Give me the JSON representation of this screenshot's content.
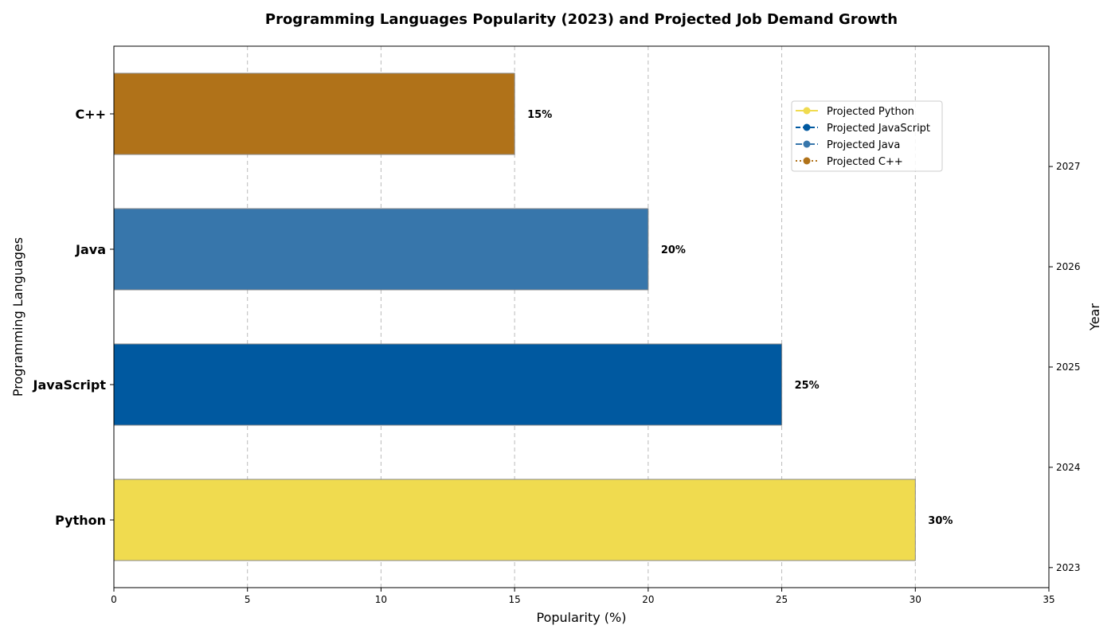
{
  "chart_data": {
    "type": "bar",
    "orientation": "horizontal",
    "title": "Programming Languages Popularity (2023) and Projected Job Demand Growth",
    "xlabel": "Popularity (%)",
    "ylabel": "Programming Languages",
    "y2label": "Year",
    "xlim": [
      0,
      35
    ],
    "xticks": [
      0,
      5,
      10,
      15,
      20,
      25,
      30,
      35
    ],
    "y2ticks": [
      2023,
      2024,
      2025,
      2026,
      2027
    ],
    "y2lim": [
      2022.8,
      2028.2
    ],
    "grid": "x-dashed",
    "legend_position": "upper-right",
    "categories": [
      "Python",
      "JavaScript",
      "Java",
      "C++"
    ],
    "values": [
      30,
      25,
      20,
      15
    ],
    "value_labels": [
      "30%",
      "25%",
      "20%",
      "15%"
    ],
    "colors": [
      "#f0db4f",
      "#0059a0",
      "#3776ab",
      "#b07219"
    ],
    "legend": [
      {
        "name": "Projected Python",
        "color": "#f0db4f",
        "linestyle": "solid"
      },
      {
        "name": "Projected JavaScript",
        "color": "#0059a0",
        "linestyle": "dashed"
      },
      {
        "name": "Projected Java",
        "color": "#3776ab",
        "linestyle": "dashdot"
      },
      {
        "name": "Projected C++",
        "color": "#b07219",
        "linestyle": "dotted"
      }
    ]
  }
}
